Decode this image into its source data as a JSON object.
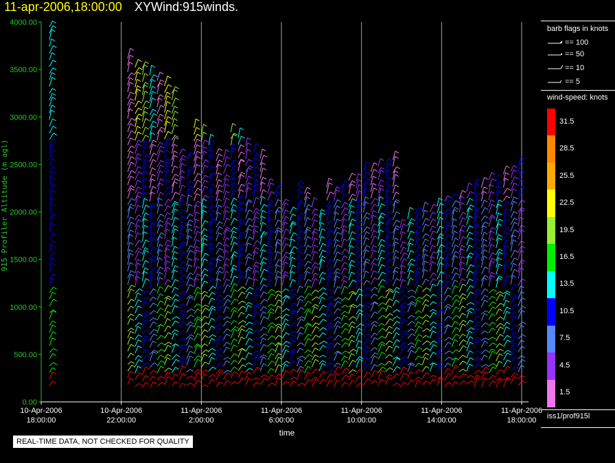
{
  "header": {
    "date_time": "11-apr-2006,18:00:00",
    "product": "XYWind:915winds."
  },
  "chart_data": {
    "type": "scatter",
    "subtype": "wind-barbs",
    "ylabel": "915 Profiler Altitude (m agl)",
    "xlabel": "time",
    "ylim": [
      0,
      4000
    ],
    "y_ticks": [
      "0.00",
      "500.00",
      "1000.00",
      "1500.00",
      "2000.00",
      "2500.00",
      "3000.00",
      "3500.00",
      "4000.00"
    ],
    "x_ticks": [
      {
        "l1": "10-Apr-2006",
        "l2": "18:00:00"
      },
      {
        "l1": "10-Apr-2006",
        "l2": "22:00:00"
      },
      {
        "l1": "11-Apr-2006",
        "l2": "2:00:00"
      },
      {
        "l1": "11-Apr-2006",
        "l2": "6:00:00"
      },
      {
        "l1": "11-Apr-2006",
        "l2": "10:00:00"
      },
      {
        "l1": "11-Apr-2006",
        "l2": "14:00:00"
      },
      {
        "l1": "11-Apr-2006",
        "l2": "18:00:00"
      }
    ],
    "grid": "vertical",
    "legend_position": "right",
    "profile_columns": 55
  },
  "legend": {
    "flags_title": "barb flags in knots",
    "flags": [
      "== 100",
      "== 50",
      "== 10",
      "== 5"
    ],
    "speed_title": "wind-speed: knots",
    "speed_labels": [
      "31.5",
      "28.5",
      "25.5",
      "22.5",
      "19.5",
      "16.5",
      "13.5",
      "10.5",
      "7.5",
      "4.5",
      "1.5"
    ],
    "speed_colors": [
      "#ff0000",
      "#ff8800",
      "#ffaa00",
      "#ffff00",
      "#99ee33",
      "#00ee00",
      "#00ffff",
      "#0000ff",
      "#5588ff",
      "#9933ff",
      "#ee77ee"
    ]
  },
  "footer": {
    "source": "iss1/prof915l",
    "notice": "REAL-TIME DATA, NOT CHECKED FOR QUALITY"
  }
}
